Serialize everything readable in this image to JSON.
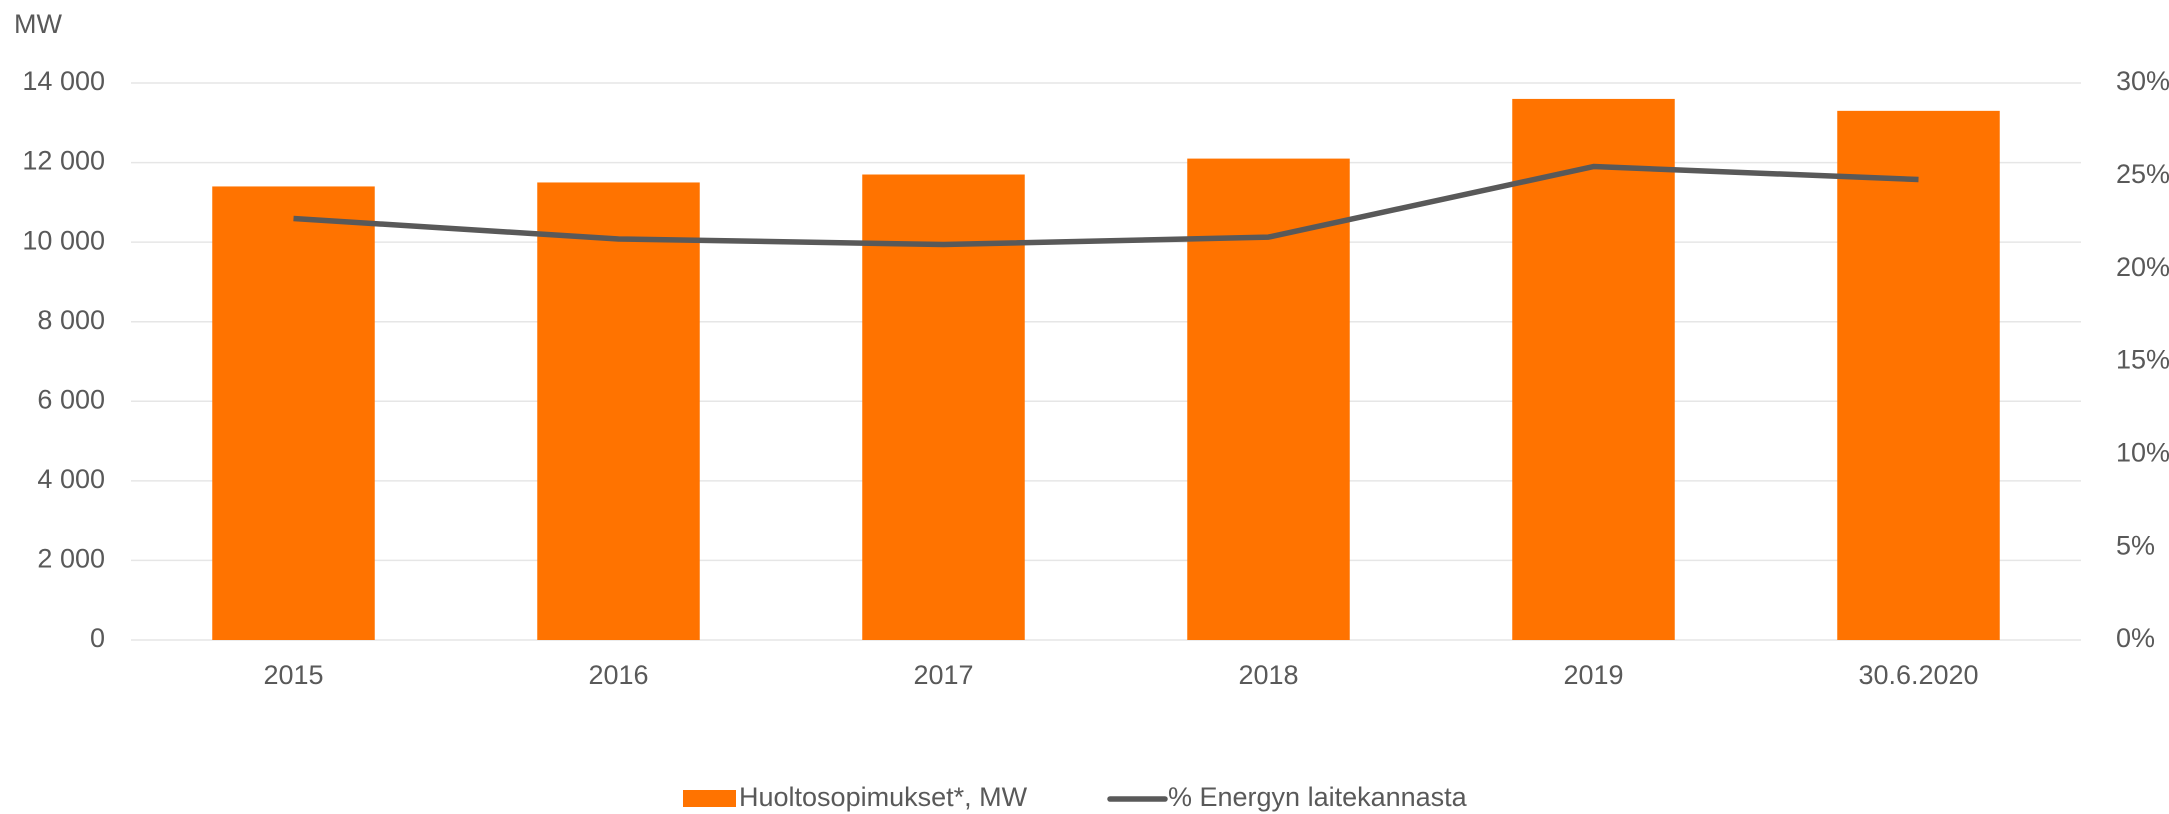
{
  "chart_data": {
    "type": "bar_line",
    "y_label": "MW",
    "categories": [
      "2015",
      "2016",
      "2017",
      "2018",
      "2019",
      "30.6.2020"
    ],
    "series": [
      {
        "name": "Huoltosopimukset*, MW",
        "color": "#ff7300",
        "type": "bar",
        "values": [
          11400,
          11500,
          11700,
          12100,
          13600,
          13300
        ]
      },
      {
        "name": "% Energyn laitekannasta",
        "color": "#595959",
        "type": "line",
        "axis": "y2",
        "values": [
          22.7,
          21.6,
          21.3,
          21.7,
          25.5,
          24.8
        ]
      }
    ],
    "ylim": [
      0,
      14000
    ],
    "yticks": [
      0,
      {
        "value": 2000,
        "label": "2 000"
      },
      {
        "value": 4000,
        "label": "4 000"
      },
      {
        "value": 6000,
        "label": "6 000"
      },
      {
        "value": 8000,
        "label": "8 000"
      },
      {
        "value": 10000,
        "label": "10 000"
      },
      {
        "value": 12000,
        "label": "12 000"
      },
      {
        "value": 14000,
        "label": "14 000"
      }
    ],
    "y2lim": [
      0,
      30
    ],
    "y2ticks": [
      {
        "value": 0,
        "label": "0%"
      },
      {
        "value": 5,
        "label": "5%"
      },
      {
        "value": 10,
        "label": "10%"
      },
      {
        "value": 15,
        "label": "15%"
      },
      {
        "value": 20,
        "label": "20%"
      },
      {
        "value": 25,
        "label": "25%"
      },
      {
        "value": 30,
        "label": "30%"
      }
    ],
    "grid": true
  }
}
